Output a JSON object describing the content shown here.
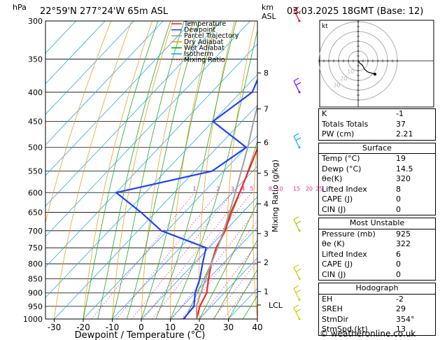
{
  "header": {
    "left_unit": "hPa",
    "location": "22°59'N 277°24'W 65m ASL",
    "km_label": "km",
    "asl_label": "ASL",
    "datetime": "03.03.2025 18GMT (Base: 12)"
  },
  "legend": {
    "items": [
      {
        "label": "Temperature",
        "color": "#ff2020",
        "style": "solid"
      },
      {
        "label": "Dewpoint",
        "color": "#2040ff",
        "style": "solid"
      },
      {
        "label": "Parcel Trajectory",
        "color": "#a0a0a0",
        "style": "solid"
      },
      {
        "label": "Dry Adiabat",
        "color": "#ff9900",
        "style": "solid"
      },
      {
        "label": "Wet Adiabat",
        "color": "#00aa00",
        "style": "solid"
      },
      {
        "label": "Isotherm",
        "color": "#00aaff",
        "style": "solid"
      },
      {
        "label": "Mixing Ratio",
        "color": "#ff00aa",
        "style": "dotted"
      }
    ]
  },
  "chart_data": {
    "type": "line",
    "xlabel": "Dewpoint / Temperature (°C)",
    "ylabel_right": "Mixing Ratio (g/kg)",
    "xlim": [
      -35,
      40
    ],
    "x_ticks": [
      -30,
      -20,
      -10,
      0,
      10,
      20,
      30,
      40
    ],
    "pressure_levels": [
      300,
      350,
      400,
      450,
      500,
      550,
      600,
      650,
      700,
      750,
      800,
      850,
      900,
      950,
      1000
    ],
    "km_ticks": [
      {
        "km": "1",
        "p": 895
      },
      {
        "km": "2",
        "p": 795
      },
      {
        "km": "3",
        "p": 708
      },
      {
        "km": "4",
        "p": 628
      },
      {
        "km": "5",
        "p": 555
      },
      {
        "km": "6",
        "p": 490
      },
      {
        "km": "7",
        "p": 428
      },
      {
        "km": "8",
        "p": 370
      }
    ],
    "lcl": {
      "label": "LCL",
      "p": 945
    },
    "mixing_ratio_labels": [
      "1",
      "2",
      "3",
      "4",
      "5",
      "8",
      "10",
      "15",
      "20",
      "25"
    ],
    "series": [
      {
        "name": "Temperature",
        "color": "#ff2020",
        "points": [
          [
            1000,
            19
          ],
          [
            950,
            16
          ],
          [
            900,
            14
          ],
          [
            850,
            10
          ],
          [
            800,
            6
          ],
          [
            750,
            2.5
          ],
          [
            700,
            0
          ],
          [
            650,
            -4
          ],
          [
            600,
            -7.5
          ],
          [
            550,
            -11.5
          ],
          [
            500,
            -16
          ],
          [
            450,
            -22
          ],
          [
            400,
            -29
          ],
          [
            350,
            -36
          ],
          [
            300,
            -43
          ]
        ]
      },
      {
        "name": "Dewpoint",
        "color": "#2040ff",
        "points": [
          [
            1000,
            14.5
          ],
          [
            950,
            14
          ],
          [
            900,
            10
          ],
          [
            850,
            7
          ],
          [
            800,
            3
          ],
          [
            750,
            -1
          ],
          [
            700,
            -22
          ],
          [
            650,
            -35
          ],
          [
            600,
            -50
          ],
          [
            550,
            -24
          ],
          [
            500,
            -20
          ],
          [
            450,
            -40
          ],
          [
            400,
            -36
          ],
          [
            350,
            -42
          ],
          [
            300,
            -40
          ]
        ]
      },
      {
        "name": "Parcel Trajectory",
        "color": "#a0a0a0",
        "points": [
          [
            1000,
            19
          ],
          [
            945,
            14.5
          ],
          [
            900,
            12
          ],
          [
            850,
            9
          ],
          [
            800,
            6
          ],
          [
            750,
            3
          ],
          [
            700,
            -0.5
          ],
          [
            650,
            -4.5
          ],
          [
            600,
            -9
          ],
          [
            550,
            -14
          ],
          [
            500,
            -19.5
          ],
          [
            450,
            -26
          ],
          [
            400,
            -33
          ],
          [
            350,
            -41
          ],
          [
            300,
            -49
          ]
        ]
      }
    ],
    "wind_barbs": [
      {
        "p": 300,
        "color": "#ff0000"
      },
      {
        "p": 400,
        "color": "#8800ff"
      },
      {
        "p": 500,
        "color": "#00aaff"
      },
      {
        "p": 700,
        "color": "#aacc00"
      },
      {
        "p": 850,
        "color": "#cccc00"
      },
      {
        "p": 925,
        "color": "#cccc00"
      },
      {
        "p": 1000,
        "color": "#cccc00"
      }
    ]
  },
  "hodograph": {
    "unit": "kt",
    "ring_labels": [
      "10",
      "20",
      "30"
    ]
  },
  "indices": {
    "top": [
      {
        "label": "K",
        "value": "-1"
      },
      {
        "label": "Totals Totals",
        "value": "37"
      },
      {
        "label": "PW (cm)",
        "value": "2.21"
      }
    ],
    "surface": {
      "title": "Surface",
      "rows": [
        {
          "label": "Temp (°C)",
          "value": "19"
        },
        {
          "label": "Dewp (°C)",
          "value": "14.5"
        },
        {
          "label": "θe(K)",
          "value": "320"
        },
        {
          "label": "Lifted Index",
          "value": "8"
        },
        {
          "label": "CAPE (J)",
          "value": "0"
        },
        {
          "label": "CIN (J)",
          "value": "0"
        }
      ]
    },
    "most_unstable": {
      "title": "Most Unstable",
      "rows": [
        {
          "label": "Pressure (mb)",
          "value": "925"
        },
        {
          "label": "θe (K)",
          "value": "322"
        },
        {
          "label": "Lifted Index",
          "value": "6"
        },
        {
          "label": "CAPE (J)",
          "value": "0"
        },
        {
          "label": "CIN (J)",
          "value": "0"
        }
      ]
    },
    "hodograph": {
      "title": "Hodograph",
      "rows": [
        {
          "label": "EH",
          "value": "-2"
        },
        {
          "label": "SREH",
          "value": "29"
        },
        {
          "label": "StmDir",
          "value": "354°"
        },
        {
          "label": "StmSpd (kt)",
          "value": "13"
        }
      ]
    }
  },
  "footer": {
    "copyright": "© weatheronline.co.uk"
  }
}
